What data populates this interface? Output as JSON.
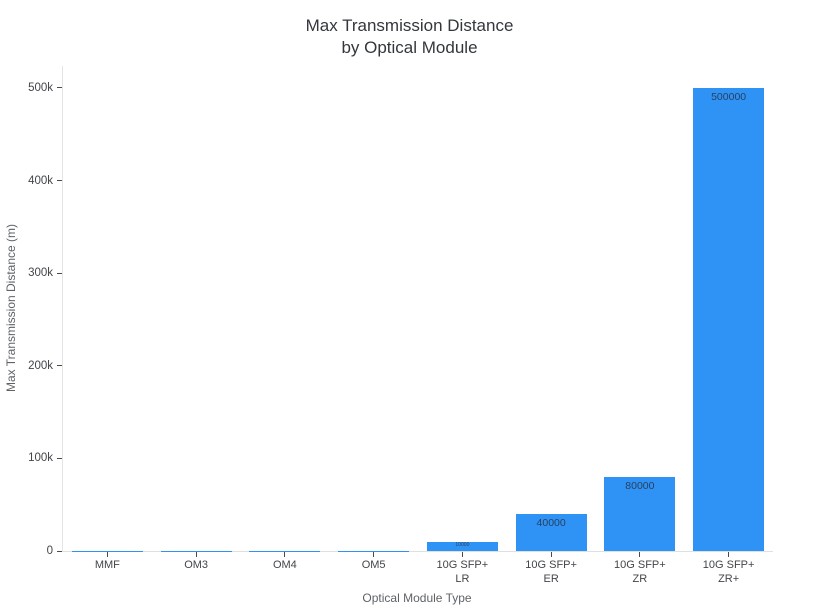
{
  "chart_data": {
    "type": "bar",
    "title": "Max Transmission Distance\nby Optical Module",
    "xlabel": "Optical Module Type",
    "ylabel": "Max Transmission Distance (m)",
    "categories": [
      "MMF",
      "OM3",
      "OM4",
      "OM5",
      "10G SFP+\nLR",
      "10G SFP+\nER",
      "10G SFP+\nZR",
      "10G SFP+\nZR+"
    ],
    "values": [
      300,
      300,
      400,
      550,
      10000,
      40000,
      80000,
      500000
    ],
    "bar_labels": [
      "",
      "",
      "",
      "",
      "10000",
      "40000",
      "80000",
      "500000"
    ],
    "yticks": {
      "values": [
        0,
        100000,
        200000,
        300000,
        400000,
        500000
      ],
      "labels": [
        "0",
        "100k",
        "200k",
        "300k",
        "400k",
        "500k"
      ]
    },
    "ylim": [
      0,
      523750
    ],
    "grid": false,
    "legend": "none",
    "colors": {
      "bar": "#2E93F5",
      "bar_label": "#2a3f5f",
      "title": "#33373d",
      "tick_label": "#42454a",
      "axis_title": "#5f6368",
      "axis_line": "#e2e2e2",
      "tick_mark": "#4a4a4a",
      "background": "#ffffff"
    }
  }
}
